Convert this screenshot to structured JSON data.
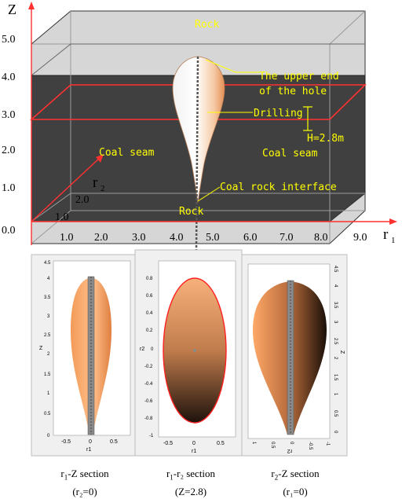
{
  "main": {
    "axis_z_label": "Z",
    "axis_r1_label": "r",
    "axis_r1_sub": "1",
    "axis_r2_label": "r",
    "axis_r2_sub": "2",
    "z_ticks": [
      "5.0",
      "4.0",
      "3.0",
      "2.0",
      "1.0",
      "0.0"
    ],
    "r1_ticks": [
      "1.0",
      "2.0",
      "3.0",
      "4.0",
      "5.0",
      "6.0",
      "7.0",
      "8.0",
      "9.0"
    ],
    "r2_ticks": [
      "2.0",
      "1.0"
    ],
    "labels": {
      "rock_top": "Rock",
      "rock_bottom": "Rock",
      "coal_left": "Coal seam",
      "coal_right": "Coal seam",
      "upper_end_1": "The upper end",
      "upper_end_2": "of the hole",
      "drilling": "Drilling",
      "height": "H=2.8m",
      "interface": "Coal rock interface"
    }
  },
  "panels": [
    {
      "caption_pre": "r",
      "caption_sub": "1",
      "caption_post": "-Z section",
      "caption_cond": "(r₂=0)",
      "y_label": "Z",
      "x_label": "r1",
      "y_ticks": [
        "4.5",
        "4",
        "3.5",
        "3",
        "2.5",
        "2",
        "1.5",
        "1",
        "0.5",
        "0"
      ],
      "x_ticks": [
        "-0.5",
        "0",
        "0.5"
      ]
    },
    {
      "caption_pre": "r",
      "caption_sub": "1",
      "caption_post": "-r₂ section",
      "caption_cond": "(Z=2.8)",
      "y_label": "r2",
      "x_label": "r1",
      "y_ticks": [
        "0.8",
        "0.6",
        "0.4",
        "0.2",
        "0",
        "-0.2",
        "-0.4",
        "-0.6",
        "-0.8",
        "-1"
      ],
      "x_ticks": [
        "-0.5",
        "0",
        "0.5"
      ]
    },
    {
      "caption_pre": "r",
      "caption_sub": "2",
      "caption_post": "-Z section",
      "caption_cond": "(r₁=0)",
      "y_label": "Z",
      "x_label": "r2",
      "y_ticks": [
        "4.5",
        "4",
        "3.5",
        "3",
        "2.5",
        "2",
        "1.5",
        "1",
        "0.5",
        "0"
      ],
      "x_ticks": [
        "1",
        "0.5",
        "0",
        "-0.5",
        "-1"
      ]
    }
  ],
  "colors": {
    "coal": "#404040",
    "rock": "#d6d6d6",
    "axis_red": "#ff3030",
    "label_yellow": "#ffff00"
  }
}
